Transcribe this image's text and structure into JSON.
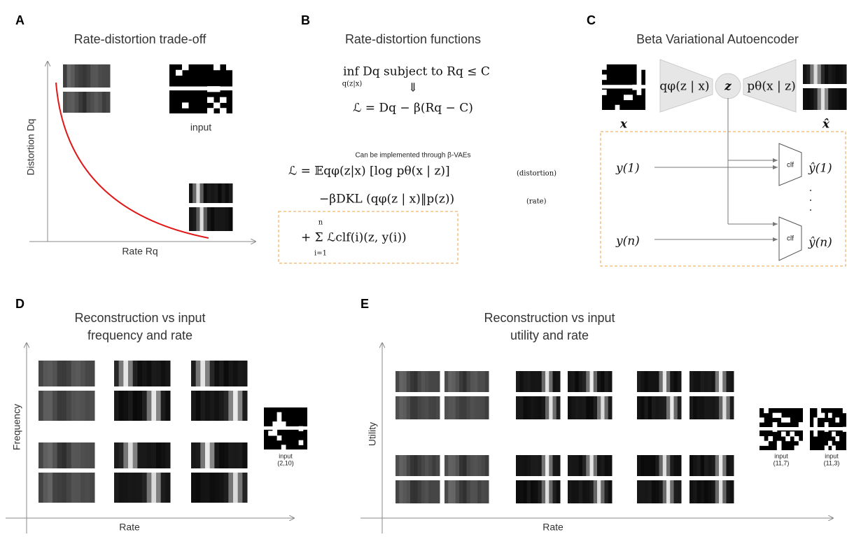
{
  "panels": {
    "A": {
      "letter": "A",
      "title": "Rate-distortion trade-off",
      "y_label": "Distortion Dq",
      "x_label": "Rate Rq",
      "input_label": "input"
    },
    "B": {
      "letter": "B",
      "title": "Rate-distortion functions",
      "constraint": "inf    Dq    subject to Rq ≤ C",
      "constraint_sub": "q(z|x)",
      "implies": "⇓",
      "lagrangian": "ℒ = Dq − β(Rq − C)",
      "note": "Can be implemented through β-VAEs",
      "term1": "ℒ =  𝔼qφ(z|x) [log pθ(x | z)]",
      "term1_note": "(distortion)",
      "term2": "−βDKL (qφ(z | x)‖p(z))",
      "term2_note": "(rate)",
      "term3": "+ Σ ℒclf(i)(z, y(i))",
      "sum_top": "n",
      "sum_bottom": "i=1"
    },
    "C": {
      "letter": "C",
      "title": "Beta Variational Autoencoder",
      "encoder": "qφ(z | x)",
      "latent": "z",
      "decoder": "pθ(x | z)",
      "input": "x",
      "output": "x̂",
      "y1": "y(1)",
      "yn": "y(n)",
      "yhat1": "ŷ(1)",
      "yhatn": "ŷ(n)",
      "clf": "clf"
    },
    "D": {
      "letter": "D",
      "title_line1": "Reconstruction vs input",
      "title_line2": "frequency and rate",
      "y_label": "Frequency",
      "x_label": "Rate",
      "input_label": "input",
      "input_coords": "(2,10)"
    },
    "E": {
      "letter": "E",
      "title_line1": "Reconstruction vs input",
      "title_line2": "utility and rate",
      "y_label": "Utility",
      "x_label": "Rate",
      "input_label": "input",
      "input1_coords": "(11,7)",
      "input2_coords": "(11,3)"
    }
  }
}
